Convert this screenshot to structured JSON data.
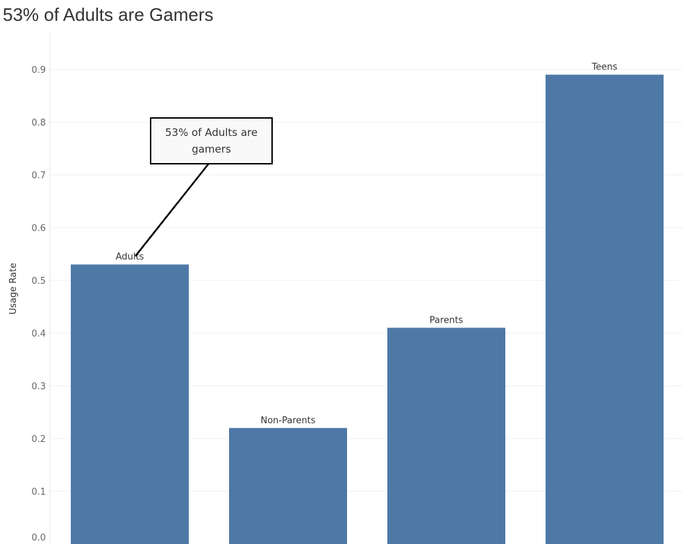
{
  "chart_data": {
    "type": "bar",
    "title": "53% of Adults are Gamers",
    "xlabel": "",
    "ylabel": "Usage Rate",
    "categories": [
      "Adults",
      "Non-Parents",
      "Parents",
      "Teens"
    ],
    "values": [
      0.53,
      0.22,
      0.41,
      0.89
    ],
    "yticks": [
      "0.0",
      "0.1",
      "0.2",
      "0.3",
      "0.4",
      "0.5",
      "0.6",
      "0.7",
      "0.8",
      "0.9"
    ],
    "ylim": [
      0,
      0.97
    ],
    "grid": true,
    "bar_color": "#4e79a7",
    "annotation": {
      "text": "53% of Adults are gamers",
      "target_category": "Adults"
    }
  }
}
